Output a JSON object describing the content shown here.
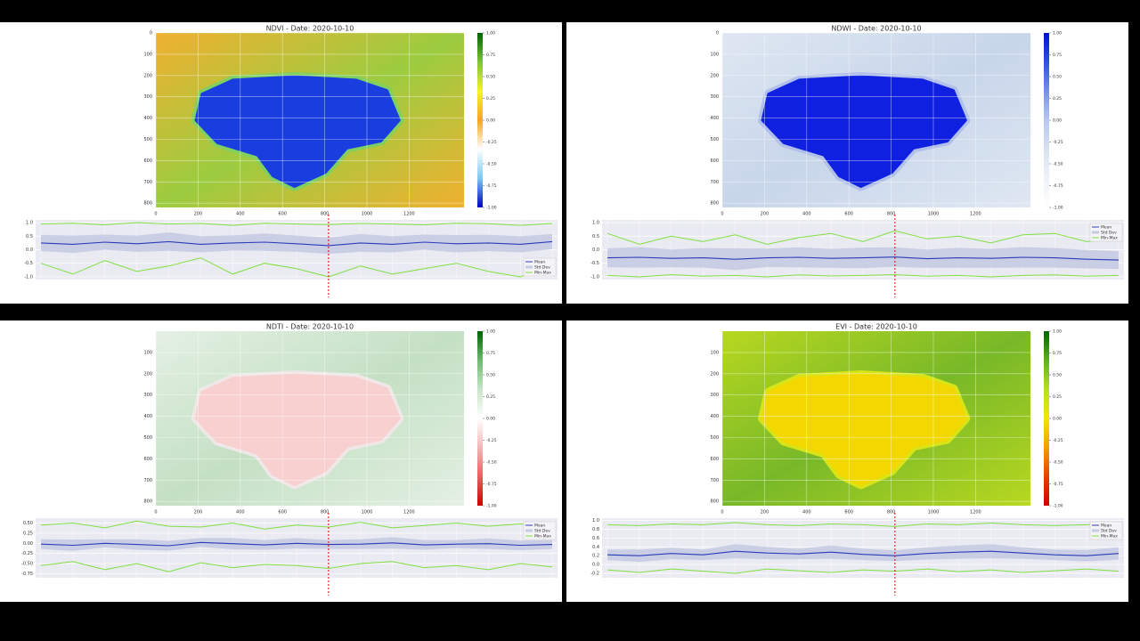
{
  "chart_data": [
    {
      "type": "line",
      "title": "NDVI - Date: 2020-10-10",
      "colormap": [
        "#006400",
        "#7fc241",
        "#f5f520",
        "#f5a623",
        "#ffffff",
        "#7ec8f0",
        "#0000c8"
      ],
      "land_color": "#f0b030",
      "land_color2": "#9ccc40",
      "lake_color": "#1a3de0",
      "lake_edge": "#7fd060",
      "image_xlim": [
        0,
        1460
      ],
      "image_ylim": [
        0,
        820
      ],
      "image_xticks": [
        0,
        200,
        400,
        600,
        800,
        1000,
        1200
      ],
      "image_yticks": [
        0,
        100,
        200,
        300,
        400,
        500,
        600,
        700,
        800
      ],
      "clim": [
        -1,
        1
      ],
      "colorbar_ticks": [
        {
          "value": 1,
          "label": "1.00"
        },
        0.75,
        {
          "value": 0.5,
          "label": "0.50"
        },
        0.25,
        {
          "value": 0,
          "label": "0.00"
        },
        -0.25,
        {
          "value": -0.5,
          "label": "-0.50"
        },
        -0.75,
        {
          "value": -1,
          "label": "-1.00"
        }
      ],
      "ylim": [
        -1.1,
        1.1
      ],
      "yticks": [
        {
          "value": 1,
          "label": "1.0"
        },
        0.5,
        {
          "value": 0,
          "label": "0.0"
        },
        -0.5,
        {
          "value": -1,
          "label": "-1.0"
        }
      ],
      "current_index": 9,
      "legend_loc": "lower right",
      "series": [
        {
          "name": "Mean",
          "color": "#2a3cb8",
          "values": [
            0.25,
            0.2,
            0.28,
            0.22,
            0.3,
            0.2,
            0.25,
            0.28,
            0.22,
            0.15,
            0.25,
            0.2,
            0.28,
            0.22,
            0.25,
            0.2,
            0.3
          ]
        },
        {
          "name": "Std Dev",
          "color": "#c5cbe3",
          "values": [
            0.3,
            0.32,
            0.28,
            0.3,
            0.34,
            0.3,
            0.28,
            0.32,
            0.3,
            0.3,
            0.33,
            0.3,
            0.28,
            0.32,
            0.3,
            0.3,
            0.28
          ]
        },
        {
          "name": "Min-Max",
          "color": "#7ee040",
          "high": [
            0.95,
            0.98,
            0.92,
            1.0,
            0.95,
            0.97,
            0.9,
            0.98,
            0.95,
            0.93,
            0.97,
            0.95,
            0.92,
            0.98,
            0.96,
            0.9,
            0.97
          ],
          "low": [
            -0.5,
            -0.9,
            -0.4,
            -0.8,
            -0.6,
            -0.3,
            -0.9,
            -0.5,
            -0.7,
            -1.0,
            -0.6,
            -0.9,
            -0.7,
            -0.5,
            -0.8,
            -1.0,
            -0.6
          ]
        }
      ]
    },
    {
      "type": "line",
      "title": "NDWI - Date: 2020-10-10",
      "colormap": [
        "#0010d0",
        "#3050e0",
        "#7890e8",
        "#b8c8ee",
        "#d8e2f2",
        "#eef2f8",
        "#ffffff"
      ],
      "land_color": "#dfe7f2",
      "land_color2": "#c8d6ea",
      "lake_color": "#1020e0",
      "lake_edge": "#b0c0ea",
      "image_xlim": [
        0,
        1460
      ],
      "image_ylim": [
        0,
        820
      ],
      "image_xticks": [
        0,
        200,
        400,
        600,
        800,
        1000,
        1200
      ],
      "image_yticks": [
        0,
        100,
        200,
        300,
        400,
        500,
        600,
        700,
        800
      ],
      "clim": [
        -1,
        1
      ],
      "colorbar_ticks": [
        {
          "value": 1,
          "label": "1.00"
        },
        0.75,
        {
          "value": 0.5,
          "label": "0.50"
        },
        0.25,
        {
          "value": 0,
          "label": "0.00"
        },
        -0.25,
        {
          "value": -0.5,
          "label": "-0.50"
        },
        -0.75,
        {
          "value": -1,
          "label": "-1.00"
        }
      ],
      "ylim": [
        -1.1,
        1.1
      ],
      "yticks": [
        {
          "value": 1,
          "label": "1.0"
        },
        0.5,
        {
          "value": 0,
          "label": "0.0"
        },
        -0.5,
        {
          "value": -1,
          "label": "-1.0"
        }
      ],
      "current_index": 9,
      "legend_loc": "upper right",
      "series": [
        {
          "name": "Mean",
          "color": "#2a3cb8",
          "values": [
            -0.3,
            -0.28,
            -0.32,
            -0.3,
            -0.35,
            -0.3,
            -0.28,
            -0.32,
            -0.3,
            -0.27,
            -0.33,
            -0.3,
            -0.32,
            -0.28,
            -0.3,
            -0.35,
            -0.38
          ]
        },
        {
          "name": "Std Dev",
          "color": "#c5cbe3",
          "values": [
            0.35,
            0.38,
            0.33,
            0.36,
            0.4,
            0.34,
            0.37,
            0.35,
            0.38,
            0.36,
            0.34,
            0.37,
            0.35,
            0.38,
            0.36,
            0.34,
            0.33
          ]
        },
        {
          "name": "Min-Max",
          "color": "#7ee040",
          "high": [
            0.6,
            0.2,
            0.5,
            0.3,
            0.55,
            0.2,
            0.45,
            0.6,
            0.3,
            0.7,
            0.4,
            0.5,
            0.25,
            0.55,
            0.6,
            0.3,
            0.4
          ],
          "low": [
            -0.95,
            -1.0,
            -0.92,
            -0.98,
            -0.95,
            -1.0,
            -0.93,
            -0.97,
            -0.95,
            -0.92,
            -0.98,
            -0.95,
            -1.0,
            -0.95,
            -0.93,
            -0.98,
            -0.95
          ]
        }
      ]
    },
    {
      "type": "line",
      "title": "NDTI - Date: 2020-10-10",
      "colormap": [
        "#006400",
        "#70b870",
        "#c8e6c8",
        "#ffffff",
        "#f2b8b8",
        "#e86060",
        "#d00000"
      ],
      "land_color": "#e4f0e4",
      "land_color2": "#c4e0c4",
      "lake_color": "#f8d0d0",
      "lake_edge": "#f0e8e8",
      "image_xlim": [
        0,
        1460
      ],
      "image_ylim": [
        0,
        820
      ],
      "image_xticks": [
        0,
        200,
        400,
        600,
        800,
        1000,
        1200
      ],
      "image_yticks": [
        100,
        200,
        300,
        400,
        500,
        600,
        700,
        800
      ],
      "clim": [
        -1,
        1
      ],
      "colorbar_ticks": [
        {
          "value": 1,
          "label": "1.00"
        },
        0.75,
        {
          "value": 0.5,
          "label": "0.50"
        },
        0.25,
        {
          "value": 0,
          "label": "0.00"
        },
        -0.25,
        {
          "value": -0.5,
          "label": "-0.50"
        },
        -0.75,
        {
          "value": -1,
          "label": "-1.00"
        }
      ],
      "ylim": [
        -0.85,
        0.62
      ],
      "yticks": [
        {
          "value": 0.5,
          "label": "0.50"
        },
        0.25,
        {
          "value": 0,
          "label": "0.00"
        },
        -0.25,
        {
          "value": -0.5,
          "label": "-0.50"
        },
        -0.75
      ],
      "current_index": 9,
      "legend_loc": "upper right",
      "series": [
        {
          "name": "Mean",
          "color": "#2a3cb8",
          "values": [
            -0.02,
            -0.05,
            0.0,
            -0.03,
            -0.06,
            0.02,
            -0.01,
            -0.04,
            0.0,
            -0.03,
            -0.02,
            0.01,
            -0.04,
            -0.02,
            -0.01,
            -0.05,
            -0.03
          ]
        },
        {
          "name": "Std Dev",
          "color": "#c5cbe3",
          "values": [
            0.12,
            0.14,
            0.1,
            0.13,
            0.12,
            0.11,
            0.14,
            0.12,
            0.13,
            0.11,
            0.12,
            0.14,
            0.12,
            0.1,
            0.13,
            0.12,
            0.11
          ]
        },
        {
          "name": "Min-Max",
          "color": "#7ee040",
          "high": [
            0.45,
            0.5,
            0.38,
            0.55,
            0.42,
            0.4,
            0.5,
            0.35,
            0.45,
            0.4,
            0.52,
            0.38,
            0.44,
            0.5,
            0.42,
            0.48,
            0.4
          ],
          "low": [
            -0.55,
            -0.45,
            -0.65,
            -0.5,
            -0.7,
            -0.48,
            -0.6,
            -0.52,
            -0.55,
            -0.62,
            -0.5,
            -0.45,
            -0.6,
            -0.55,
            -0.65,
            -0.5,
            -0.58
          ]
        }
      ]
    },
    {
      "type": "line",
      "title": "EVI - Date: 2020-10-10",
      "colormap": [
        "#006400",
        "#60b020",
        "#b8e020",
        "#f0e800",
        "#f0a000",
        "#e84000",
        "#d00000"
      ],
      "land_color": "#b8d820",
      "land_color2": "#78b828",
      "lake_color": "#f2d800",
      "lake_edge": "#d8e418",
      "image_xlim": [
        0,
        1460
      ],
      "image_ylim": [
        0,
        820
      ],
      "image_xticks": [
        0,
        200,
        400,
        600,
        800,
        1000,
        1200
      ],
      "image_yticks": [
        100,
        200,
        300,
        400,
        500,
        600,
        700,
        800
      ],
      "clim": [
        -1,
        1
      ],
      "colorbar_ticks": [
        {
          "value": 1,
          "label": "1.00"
        },
        0.75,
        {
          "value": 0.5,
          "label": "0.50"
        },
        0.25,
        {
          "value": 0,
          "label": "0.00"
        },
        -0.25,
        {
          "value": -0.5,
          "label": "-0.50"
        },
        -0.75,
        {
          "value": -1,
          "label": "-1.00"
        }
      ],
      "ylim": [
        -0.3,
        1.05
      ],
      "yticks": [
        {
          "value": 1,
          "label": "1.0"
        },
        0.8,
        0.6,
        0.4,
        0.2,
        {
          "value": 0,
          "label": "0.0"
        },
        -0.2
      ],
      "current_index": 9,
      "legend_loc": "upper right",
      "series": [
        {
          "name": "Mean",
          "color": "#2a3cb8",
          "values": [
            0.22,
            0.2,
            0.25,
            0.22,
            0.3,
            0.26,
            0.24,
            0.28,
            0.23,
            0.2,
            0.25,
            0.28,
            0.3,
            0.26,
            0.22,
            0.2,
            0.25
          ]
        },
        {
          "name": "Std Dev",
          "color": "#c5cbe3",
          "values": [
            0.12,
            0.14,
            0.13,
            0.12,
            0.16,
            0.14,
            0.12,
            0.15,
            0.13,
            0.12,
            0.14,
            0.15,
            0.16,
            0.13,
            0.12,
            0.13,
            0.14
          ]
        },
        {
          "name": "Min-Max",
          "color": "#7ee040",
          "high": [
            0.9,
            0.88,
            0.92,
            0.9,
            0.95,
            0.9,
            0.88,
            0.92,
            0.9,
            0.86,
            0.92,
            0.9,
            0.94,
            0.9,
            0.88,
            0.9,
            0.92
          ],
          "low": [
            -0.12,
            -0.18,
            -0.1,
            -0.15,
            -0.2,
            -0.1,
            -0.14,
            -0.18,
            -0.12,
            -0.15,
            -0.1,
            -0.16,
            -0.12,
            -0.18,
            -0.14,
            -0.1,
            -0.15
          ]
        }
      ]
    }
  ]
}
